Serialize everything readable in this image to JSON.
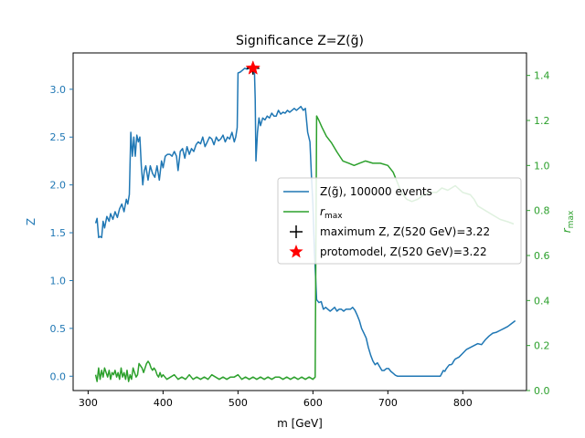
{
  "chart_data": {
    "type": "line",
    "title": "Significance Z=Z(g̃)",
    "xlabel": "m [GeV]",
    "ylabel_left": "Z",
    "ylabel_right": "r_max",
    "xlim": [
      280,
      885
    ],
    "ylim_left": [
      -0.15,
      3.38
    ],
    "ylim_right": [
      0.0,
      1.5
    ],
    "xticks": [
      300,
      400,
      500,
      600,
      700,
      800
    ],
    "yticks_left": [
      0.0,
      0.5,
      1.0,
      1.5,
      2.0,
      2.5,
      3.0
    ],
    "yticks_right": [
      0.0,
      0.2,
      0.4,
      0.6,
      0.8,
      1.0,
      1.2,
      1.4
    ],
    "left_axis_color": "#1f77b4",
    "right_axis_color": "#2ca02c",
    "grid": false,
    "legend_placement": "center-right",
    "series": [
      {
        "name": "Z(g̃), 100000 events",
        "axis": "left",
        "color": "#1f77b4",
        "x": [
          310,
          312,
          314,
          316,
          318,
          320,
          322,
          325,
          328,
          330,
          333,
          336,
          339,
          342,
          345,
          348,
          351,
          353,
          355,
          357,
          359,
          361,
          363,
          365,
          367,
          369,
          371,
          373,
          375,
          377,
          380,
          383,
          386,
          389,
          392,
          395,
          398,
          400,
          403,
          406,
          409,
          412,
          415,
          418,
          420,
          423,
          426,
          429,
          432,
          435,
          438,
          441,
          444,
          447,
          450,
          453,
          456,
          459,
          462,
          465,
          468,
          471,
          474,
          477,
          480,
          483,
          486,
          489,
          492,
          495,
          497,
          499,
          500,
          503,
          506,
          509,
          512,
          515,
          518,
          520,
          522,
          523,
          524,
          526,
          528,
          530,
          533,
          536,
          539,
          542,
          545,
          548,
          551,
          554,
          557,
          560,
          563,
          566,
          569,
          572,
          575,
          578,
          581,
          584,
          587,
          590,
          593,
          596,
          598,
          600,
          602,
          605,
          608,
          611,
          614,
          617,
          620,
          623,
          626,
          629,
          632,
          635,
          638,
          641,
          644,
          647,
          650,
          653,
          656,
          659,
          662,
          665,
          668,
          671,
          674,
          677,
          680,
          683,
          686,
          689,
          692,
          695,
          698,
          701,
          704,
          707,
          710,
          713,
          716,
          719,
          722,
          725,
          730,
          740,
          750,
          760,
          768,
          770,
          772,
          774,
          776,
          778,
          780,
          782,
          784,
          786,
          788,
          790,
          795,
          800,
          805,
          810,
          815,
          820,
          825,
          830,
          835,
          840,
          845,
          850,
          855,
          860,
          865,
          870
        ],
        "y": [
          1.6,
          1.65,
          1.45,
          1.46,
          1.45,
          1.62,
          1.55,
          1.67,
          1.62,
          1.7,
          1.64,
          1.72,
          1.66,
          1.75,
          1.8,
          1.72,
          1.85,
          1.8,
          1.9,
          2.55,
          2.3,
          2.5,
          2.3,
          2.52,
          2.45,
          2.5,
          2.2,
          2.0,
          2.15,
          2.2,
          2.05,
          2.2,
          2.12,
          2.08,
          2.2,
          2.05,
          2.25,
          2.18,
          2.3,
          2.32,
          2.32,
          2.3,
          2.35,
          2.3,
          2.15,
          2.35,
          2.38,
          2.28,
          2.4,
          2.32,
          2.38,
          2.35,
          2.42,
          2.45,
          2.43,
          2.5,
          2.4,
          2.45,
          2.5,
          2.48,
          2.42,
          2.5,
          2.46,
          2.48,
          2.52,
          2.45,
          2.5,
          2.48,
          2.55,
          2.45,
          2.5,
          2.6,
          3.17,
          3.18,
          3.2,
          3.22,
          3.21,
          3.22,
          3.22,
          3.22,
          3.18,
          2.9,
          2.25,
          2.55,
          2.7,
          2.62,
          2.7,
          2.68,
          2.72,
          2.7,
          2.75,
          2.72,
          2.72,
          2.78,
          2.74,
          2.76,
          2.75,
          2.78,
          2.76,
          2.78,
          2.8,
          2.78,
          2.8,
          2.82,
          2.78,
          2.8,
          2.55,
          2.45,
          2.1,
          1.8,
          1.3,
          0.8,
          0.77,
          0.78,
          0.7,
          0.72,
          0.7,
          0.68,
          0.7,
          0.72,
          0.68,
          0.7,
          0.7,
          0.68,
          0.7,
          0.7,
          0.7,
          0.72,
          0.69,
          0.64,
          0.58,
          0.5,
          0.45,
          0.4,
          0.3,
          0.22,
          0.16,
          0.12,
          0.14,
          0.1,
          0.06,
          0.06,
          0.08,
          0.08,
          0.05,
          0.03,
          0.01,
          0.0,
          0.0,
          0.0,
          0.0,
          0.0,
          0.0,
          0.0,
          0.0,
          0.0,
          0.0,
          0.0,
          0.03,
          0.06,
          0.05,
          0.08,
          0.1,
          0.12,
          0.12,
          0.13,
          0.16,
          0.18,
          0.2,
          0.24,
          0.28,
          0.3,
          0.32,
          0.34,
          0.33,
          0.38,
          0.42,
          0.45,
          0.46,
          0.48,
          0.5,
          0.52,
          0.55,
          0.58
        ]
      },
      {
        "name": "r_max",
        "axis": "right",
        "color": "#2ca02c",
        "x": [
          310,
          312,
          314,
          316,
          318,
          320,
          322,
          324,
          326,
          328,
          330,
          332,
          334,
          336,
          338,
          340,
          342,
          344,
          346,
          348,
          350,
          352,
          354,
          356,
          358,
          360,
          362,
          364,
          366,
          368,
          370,
          372,
          374,
          376,
          378,
          380,
          382,
          384,
          386,
          388,
          390,
          392,
          394,
          396,
          398,
          400,
          405,
          410,
          415,
          420,
          425,
          430,
          435,
          440,
          445,
          450,
          455,
          460,
          465,
          470,
          475,
          480,
          485,
          490,
          495,
          500,
          505,
          510,
          515,
          520,
          525,
          530,
          535,
          540,
          545,
          550,
          555,
          560,
          565,
          570,
          575,
          580,
          585,
          590,
          595,
          600,
          603,
          605,
          608,
          612,
          618,
          625,
          632,
          640,
          648,
          655,
          662,
          670,
          680,
          690,
          700,
          707,
          712,
          718,
          725,
          732,
          740,
          748,
          756,
          765,
          772,
          780,
          790,
          800,
          810,
          815,
          820,
          830,
          840,
          850,
          860,
          868
        ],
        "y": [
          0.07,
          0.04,
          0.1,
          0.05,
          0.09,
          0.06,
          0.1,
          0.08,
          0.06,
          0.09,
          0.05,
          0.08,
          0.07,
          0.09,
          0.06,
          0.08,
          0.05,
          0.1,
          0.06,
          0.08,
          0.05,
          0.09,
          0.04,
          0.07,
          0.05,
          0.1,
          0.08,
          0.06,
          0.07,
          0.12,
          0.11,
          0.1,
          0.08,
          0.1,
          0.12,
          0.13,
          0.12,
          0.1,
          0.09,
          0.1,
          0.09,
          0.07,
          0.06,
          0.08,
          0.06,
          0.07,
          0.05,
          0.06,
          0.07,
          0.05,
          0.06,
          0.05,
          0.07,
          0.05,
          0.06,
          0.05,
          0.06,
          0.05,
          0.07,
          0.06,
          0.05,
          0.06,
          0.05,
          0.06,
          0.06,
          0.07,
          0.05,
          0.06,
          0.05,
          0.06,
          0.05,
          0.06,
          0.05,
          0.06,
          0.05,
          0.06,
          0.06,
          0.05,
          0.06,
          0.05,
          0.06,
          0.05,
          0.06,
          0.05,
          0.06,
          0.05,
          0.06,
          1.22,
          1.2,
          1.17,
          1.13,
          1.1,
          1.06,
          1.02,
          1.01,
          1.0,
          1.01,
          1.02,
          1.01,
          1.01,
          1.0,
          0.97,
          0.93,
          0.88,
          0.85,
          0.84,
          0.85,
          0.87,
          0.88,
          0.88,
          0.9,
          0.89,
          0.91,
          0.88,
          0.87,
          0.85,
          0.82,
          0.8,
          0.78,
          0.76,
          0.75,
          0.74
        ]
      }
    ],
    "markers": [
      {
        "name": "maximum Z, Z(520 GeV)=3.22",
        "x": 520,
        "y": 3.22,
        "axis": "left",
        "shape": "plus",
        "color": "#000000"
      },
      {
        "name": "protomodel, Z(520 GeV)=3.22",
        "x": 520,
        "y": 3.22,
        "axis": "left",
        "shape": "star",
        "color": "#ff0000"
      }
    ],
    "legend": [
      {
        "label": "Z(g̃), 100000 events",
        "symbol": "line",
        "color": "#1f77b4"
      },
      {
        "label": "r",
        "sub": "max",
        "symbol": "line",
        "color": "#2ca02c"
      },
      {
        "label": "maximum Z, Z(520 GeV)=3.22",
        "symbol": "plus",
        "color": "#000000"
      },
      {
        "label": "protomodel, Z(520 GeV)=3.22",
        "symbol": "star",
        "color": "#ff0000"
      }
    ]
  }
}
